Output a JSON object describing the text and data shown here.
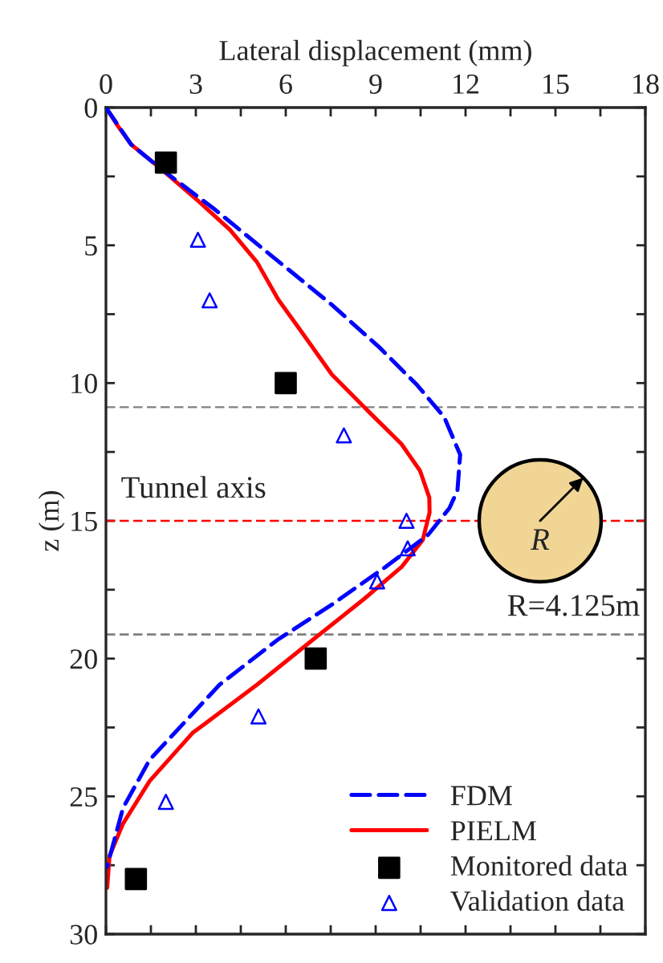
{
  "chart_data": {
    "type": "line",
    "xlabel": "Lateral displacement (mm)",
    "ylabel": "z (m)",
    "xlim": [
      0,
      18
    ],
    "xticks": [
      0,
      {
        "value": 1.5,
        "label": null
      },
      3,
      {
        "value": 4.5,
        "label": null
      },
      6,
      {
        "value": 7.5,
        "label": null
      },
      9,
      {
        "value": 10.5,
        "label": null
      },
      12,
      {
        "value": 13.5,
        "label": null
      },
      15,
      {
        "value": 16.5,
        "label": null
      },
      18
    ],
    "ylim": [
      30,
      0
    ],
    "yticks": [
      0,
      {
        "value": 2.5,
        "label": null
      },
      5,
      {
        "value": 7.5,
        "label": null
      },
      10,
      {
        "value": 12.5,
        "label": null
      },
      15,
      {
        "value": 17.5,
        "label": null
      },
      20,
      {
        "value": 22.5,
        "label": null
      },
      25,
      {
        "value": 27.5,
        "label": null
      },
      30
    ],
    "series": [
      {
        "name": "FDM",
        "line_style": "dashed",
        "marker": "none",
        "color": "#0000ff",
        "x": [
          0,
          0.84,
          1.82,
          3.6,
          5.57,
          7.54,
          9.14,
          10.39,
          11.29,
          11.82,
          11.73,
          11.46,
          10.75,
          9.32,
          7.54,
          5.75,
          3.79,
          1.46,
          0.57,
          0.04
        ],
        "values": [
          0,
          1.34,
          2.21,
          3.67,
          5.42,
          7.16,
          8.72,
          10.08,
          11.24,
          12.6,
          13.9,
          14.54,
          15.51,
          16.68,
          18.04,
          19.3,
          20.95,
          23.67,
          25.42,
          27.55
        ]
      },
      {
        "name": "PIELM",
        "line_style": "solid",
        "marker": "none",
        "color": "#ff0000",
        "x": [
          0,
          0.39,
          0.84,
          1.82,
          3.07,
          4.14,
          5.04,
          5.75,
          6.46,
          7.54,
          8.78,
          9.86,
          10.48,
          10.79,
          10.8,
          10.57,
          9.86,
          8.61,
          6.82,
          5.04,
          2.89,
          1.46,
          0.57,
          0.12,
          0.04
        ],
        "values": [
          0,
          0.66,
          1.34,
          2.21,
          3.38,
          4.44,
          5.61,
          6.97,
          8.04,
          9.69,
          11.05,
          12.21,
          13.18,
          14.15,
          14.7,
          15.7,
          16.68,
          17.84,
          19.39,
          20.95,
          22.7,
          24.44,
          25.99,
          27.16,
          28.32
        ]
      },
      {
        "name": "Monitored data",
        "type": "scatter",
        "marker": "square",
        "color": "#000000",
        "x": [
          2,
          6,
          7,
          1
        ],
        "values": [
          2,
          10,
          20,
          28
        ]
      },
      {
        "name": "Validation data",
        "type": "scatter",
        "marker": "triangle",
        "color": "#0000ff",
        "x": [
          3.07,
          3.46,
          7.94,
          10.03,
          10.07,
          9.05,
          5.09,
          2.0
        ],
        "values": [
          4.8,
          7.0,
          11.9,
          15.0,
          16.0,
          17.2,
          22.1,
          25.2
        ]
      }
    ],
    "ref_lines": [
      {
        "axis": "y",
        "value": 10.875,
        "label": null,
        "color": "#808080",
        "line_style": "dashed"
      },
      {
        "axis": "y",
        "value": 15,
        "label": "Tunnel axis",
        "color": "#ff0000",
        "line_style": "dashed"
      },
      {
        "axis": "y",
        "value": 19.125,
        "label": null,
        "color": "#808080",
        "line_style": "dashed"
      }
    ],
    "annotations": [
      "R",
      "R=4.125m"
    ],
    "legend": "bottom right",
    "grid": false
  }
}
